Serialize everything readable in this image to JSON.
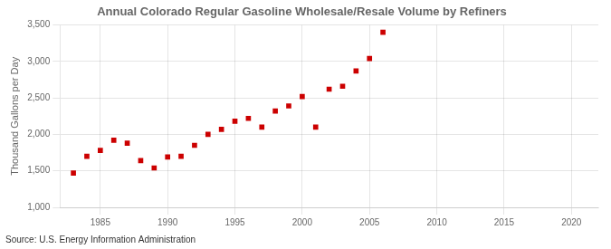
{
  "chart_data": {
    "type": "scatter",
    "title": "Annual Colorado Regular Gasoline Wholesale/Resale Volume by Refiners",
    "ylabel": "Thousand Gallons per Day",
    "annotation": "Source: U.S. Energy Information Administration",
    "x": [
      1983,
      1984,
      1985,
      1986,
      1987,
      1988,
      1989,
      1990,
      1991,
      1992,
      1993,
      1994,
      1995,
      1996,
      1997,
      1998,
      1999,
      2000,
      2001,
      2002,
      2003,
      2004,
      2005,
      2006
    ],
    "values": [
      1470,
      1700,
      1780,
      1920,
      1880,
      1640,
      1540,
      1690,
      1700,
      1850,
      2000,
      2070,
      2180,
      2220,
      2100,
      2320,
      2390,
      2520,
      2100,
      2620,
      2660,
      2870,
      3040,
      3400
    ],
    "color": "#cc0000",
    "marker": "square",
    "xlim": [
      1982,
      2022
    ],
    "ylim": [
      1000,
      3500
    ],
    "xticks": [
      1985,
      1990,
      1995,
      2000,
      2005,
      2010,
      2015,
      2020
    ],
    "yticks": [
      {
        "value": 1000,
        "label": "1,000"
      },
      {
        "value": 1500,
        "label": "1,500"
      },
      {
        "value": 2000,
        "label": "2,000"
      },
      {
        "value": 2500,
        "label": "2,500"
      },
      {
        "value": 3000,
        "label": "3,000"
      },
      {
        "value": 3500,
        "label": "3,500"
      }
    ],
    "grid": true
  }
}
